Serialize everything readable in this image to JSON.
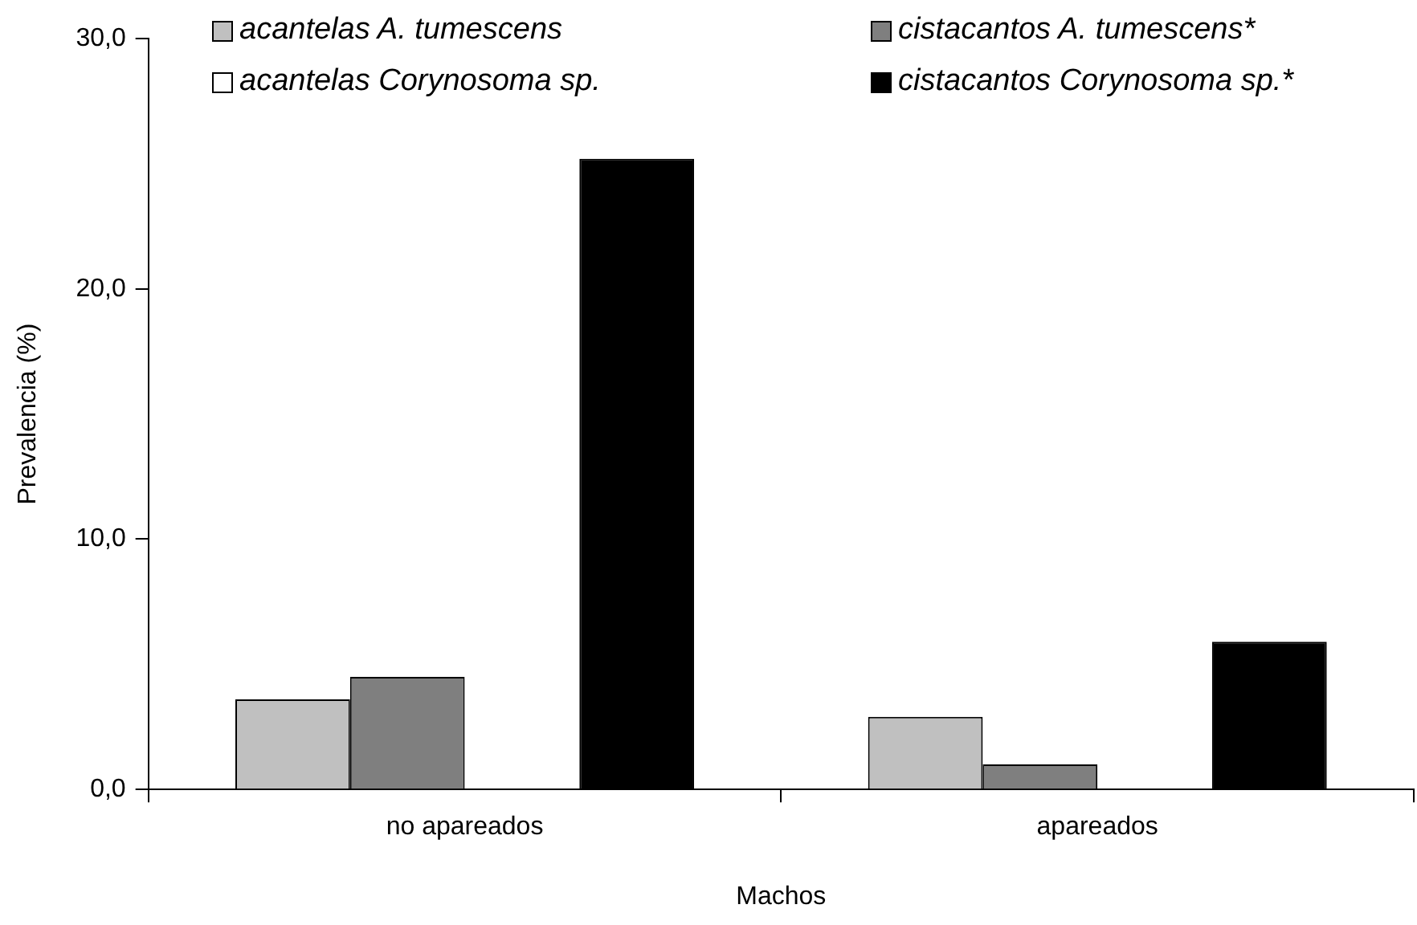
{
  "chart_data": {
    "type": "bar",
    "xlabel": "Machos",
    "ylabel": "Prevalencia (%)",
    "categories": [
      "no apareados",
      "apareados"
    ],
    "series": [
      {
        "name": "acantelas A. tumescens",
        "color": "#c0c0c0",
        "values": [
          3.6,
          2.9
        ]
      },
      {
        "name": "cistacantos A. tumescens*",
        "color": "#7f7f7f",
        "values": [
          4.5,
          1.0
        ]
      },
      {
        "name": "acantelas Corynosoma sp.",
        "color": "#ffffff",
        "values": [
          0,
          0
        ]
      },
      {
        "name": "cistacantos Corynosoma sp.*",
        "color": "#000000",
        "values": [
          25.2,
          5.9
        ]
      }
    ],
    "ylim": [
      0,
      30
    ],
    "yticks": [
      {
        "value": 0,
        "label": "0,0"
      },
      {
        "value": 10,
        "label": "10,0"
      },
      {
        "value": 20,
        "label": "20,0"
      },
      {
        "value": 30,
        "label": "30,0"
      }
    ],
    "grid": false,
    "legend": "top"
  }
}
